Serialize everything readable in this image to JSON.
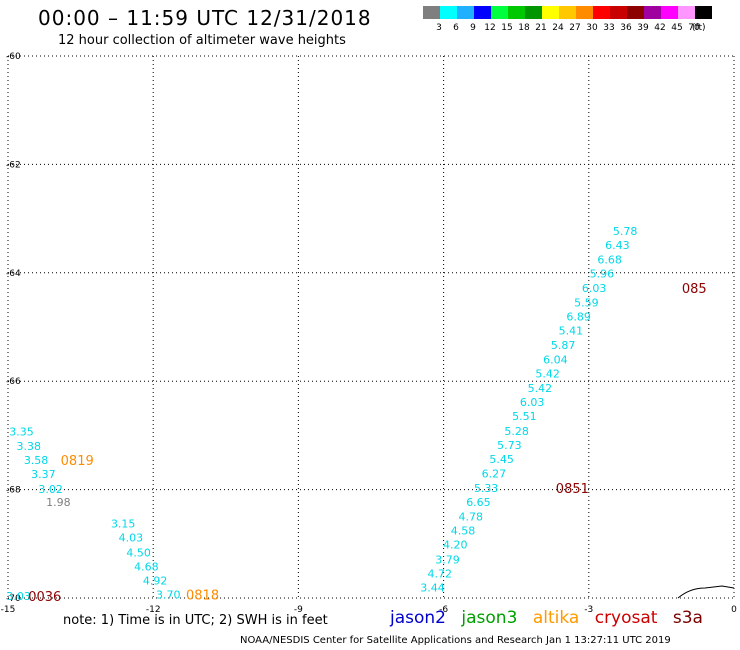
{
  "header": {
    "title": "00:00 – 11:59 UTC 12/31/2018",
    "subtitle": "12 hour collection of altimeter wave heights"
  },
  "legend": {
    "unit": "(ft)",
    "bins": [
      {
        "label": "3",
        "color": "#7f7f7f"
      },
      {
        "label": "6",
        "color": "#00ffff"
      },
      {
        "label": "9",
        "color": "#1fb0ff"
      },
      {
        "label": "12",
        "color": "#0000ff"
      },
      {
        "label": "15",
        "color": "#00ff3f"
      },
      {
        "label": "18",
        "color": "#00c800"
      },
      {
        "label": "21",
        "color": "#009600"
      },
      {
        "label": "24",
        "color": "#ffff00"
      },
      {
        "label": "27",
        "color": "#ffc800"
      },
      {
        "label": "30",
        "color": "#ff8c00"
      },
      {
        "label": "33",
        "color": "#ff0000"
      },
      {
        "label": "36",
        "color": "#c80000"
      },
      {
        "label": "39",
        "color": "#8c0000"
      },
      {
        "label": "42",
        "color": "#a000a0"
      },
      {
        "label": "45",
        "color": "#ff00ff"
      },
      {
        "label": "70",
        "color": "#ff96ff"
      },
      {
        "label": "",
        "color": "#000000"
      }
    ]
  },
  "chart_data": {
    "type": "scatter",
    "x_ticks": [
      "-15",
      "-12",
      "-9",
      "-6",
      "-3",
      "0"
    ],
    "y_ticks": [
      "-60",
      "-62",
      "-64",
      "-66",
      "-68",
      "-70"
    ],
    "xlim": [
      -15,
      0
    ],
    "ylim": [
      -70,
      -60
    ],
    "grid": true,
    "colors": {
      "cyan": "#00d8e8",
      "gray": "#7f7f7f",
      "orange": "#ff8c00",
      "maroon": "#8c0000"
    },
    "series": [
      {
        "color": "cyan",
        "points": [
          {
            "x": -14.72,
            "y": -67.0,
            "v": "3.35"
          },
          {
            "x": -14.57,
            "y": -67.27,
            "v": "3.38"
          },
          {
            "x": -14.42,
            "y": -67.53,
            "v": "3.58"
          },
          {
            "x": -14.27,
            "y": -67.79,
            "v": "3.37"
          },
          {
            "x": -14.12,
            "y": -68.06,
            "v": "3.02"
          },
          {
            "x": -12.62,
            "y": -68.7,
            "v": "3.15"
          },
          {
            "x": -12.46,
            "y": -68.96,
            "v": "4.03"
          },
          {
            "x": -12.3,
            "y": -69.23,
            "v": "4.50"
          },
          {
            "x": -12.14,
            "y": -69.49,
            "v": "4.68"
          },
          {
            "x": -11.96,
            "y": -69.75,
            "v": "4.92"
          },
          {
            "x": -11.69,
            "y": -70.01,
            "v": "3.70"
          },
          {
            "x": -14.78,
            "y": -70.04,
            "v": "3.03"
          },
          {
            "x": -6.23,
            "y": -69.88,
            "v": "3.44"
          },
          {
            "x": -6.08,
            "y": -69.62,
            "v": "4.72"
          },
          {
            "x": -5.92,
            "y": -69.36,
            "v": "3.79"
          },
          {
            "x": -5.76,
            "y": -69.09,
            "v": "4.20"
          },
          {
            "x": -5.6,
            "y": -68.83,
            "v": "4.58"
          },
          {
            "x": -5.44,
            "y": -68.57,
            "v": "4.78"
          },
          {
            "x": -5.28,
            "y": -68.3,
            "v": "6.65"
          },
          {
            "x": -5.12,
            "y": -68.04,
            "v": "5.33"
          },
          {
            "x": -4.96,
            "y": -67.78,
            "v": "6.27"
          },
          {
            "x": -4.8,
            "y": -67.51,
            "v": "5.45"
          },
          {
            "x": -4.64,
            "y": -67.25,
            "v": "5.73"
          },
          {
            "x": -4.49,
            "y": -66.99,
            "v": "5.28"
          },
          {
            "x": -4.33,
            "y": -66.72,
            "v": "5.51"
          },
          {
            "x": -4.17,
            "y": -66.46,
            "v": "6.03"
          },
          {
            "x": -4.01,
            "y": -66.2,
            "v": "5.42"
          },
          {
            "x": -3.85,
            "y": -65.93,
            "v": "5.42"
          },
          {
            "x": -3.69,
            "y": -65.67,
            "v": "6.04"
          },
          {
            "x": -3.53,
            "y": -65.41,
            "v": "5.87"
          },
          {
            "x": -3.37,
            "y": -65.14,
            "v": "5.41"
          },
          {
            "x": -3.21,
            "y": -64.88,
            "v": "6.89"
          },
          {
            "x": -3.05,
            "y": -64.62,
            "v": "5.59"
          },
          {
            "x": -2.89,
            "y": -64.35,
            "v": "6.03"
          },
          {
            "x": -2.73,
            "y": -64.09,
            "v": "5.96"
          },
          {
            "x": -2.57,
            "y": -63.83,
            "v": "6.68"
          },
          {
            "x": -2.41,
            "y": -63.56,
            "v": "6.43"
          },
          {
            "x": -2.25,
            "y": -63.3,
            "v": "5.78"
          }
        ]
      },
      {
        "color": "gray",
        "points": [
          {
            "x": -13.96,
            "y": -68.3,
            "v": "1.98"
          }
        ]
      }
    ],
    "pass_labels": [
      {
        "x": -13.57,
        "y": -67.53,
        "text": "0819",
        "color": "orange"
      },
      {
        "x": -10.98,
        "y": -70.01,
        "text": "0818",
        "color": "orange"
      },
      {
        "x": -14.24,
        "y": -70.04,
        "text": "0036",
        "color": "maroon"
      },
      {
        "x": -3.34,
        "y": -68.04,
        "text": "0851",
        "color": "maroon"
      },
      {
        "x": -0.82,
        "y": -64.35,
        "text": "085",
        "color": "maroon"
      }
    ]
  },
  "footer": {
    "note": "note: 1) Time is in UTC; 2) SWH is in feet",
    "satellites": [
      {
        "name": "jason2",
        "color": "#0000cc"
      },
      {
        "name": "jason3",
        "color": "#00a000"
      },
      {
        "name": "altika",
        "color": "#ff9900"
      },
      {
        "name": "cryosat",
        "color": "#cc0000"
      },
      {
        "name": "s3a",
        "color": "#7a0000"
      }
    ],
    "credit": "NOAA/NESDIS Center for Satellite Applications and Research   Jan  1 13:27:11 UTC 2019"
  }
}
